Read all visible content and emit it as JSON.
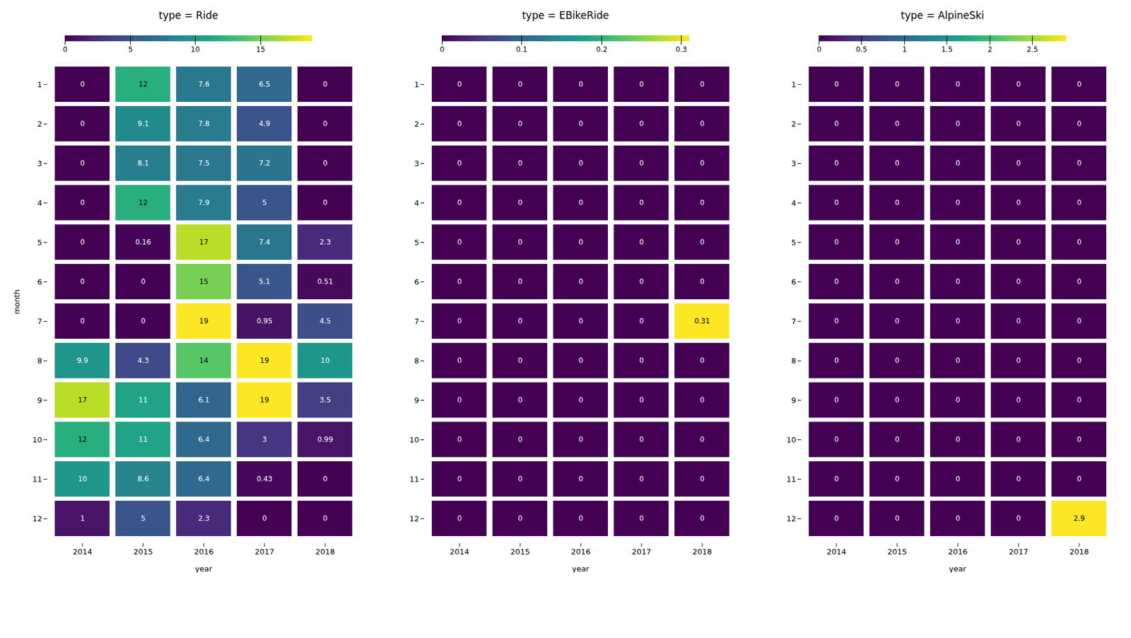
{
  "chart_data": [
    {
      "type": "heatmap",
      "title": "type = Ride",
      "xlabel": "year",
      "ylabel": "month",
      "x": [
        2014,
        2015,
        2016,
        2017,
        2018
      ],
      "y": [
        1,
        2,
        3,
        4,
        5,
        6,
        7,
        8,
        9,
        10,
        11,
        12
      ],
      "values": [
        [
          0,
          12,
          7.6,
          6.5,
          0
        ],
        [
          0,
          9.1,
          7.8,
          4.9,
          0
        ],
        [
          0,
          8.1,
          7.5,
          7.2,
          0
        ],
        [
          0,
          12,
          7.9,
          5,
          0
        ],
        [
          0,
          0.16,
          17,
          7.4,
          2.3
        ],
        [
          0,
          0,
          15,
          5.1,
          0.51
        ],
        [
          0,
          0,
          19,
          0.95,
          4.5
        ],
        [
          9.9,
          4.3,
          14,
          19,
          10
        ],
        [
          17,
          11,
          6.1,
          19,
          3.5
        ],
        [
          12,
          11,
          6.4,
          3,
          0.99
        ],
        [
          10,
          8.6,
          6.4,
          0.43,
          0
        ],
        [
          1,
          5,
          2.3,
          0,
          0
        ]
      ],
      "color": "viridis",
      "color_range": [
        0,
        19
      ],
      "color_ticks": [
        0,
        5,
        10,
        15
      ],
      "data_labels": true
    },
    {
      "type": "heatmap",
      "title": "type = EBikeRide",
      "xlabel": "year",
      "x": [
        2014,
        2015,
        2016,
        2017,
        2018
      ],
      "y": [
        1,
        2,
        3,
        4,
        5,
        6,
        7,
        8,
        9,
        10,
        11,
        12
      ],
      "values": [
        [
          0,
          0,
          0,
          0,
          0
        ],
        [
          0,
          0,
          0,
          0,
          0
        ],
        [
          0,
          0,
          0,
          0,
          0
        ],
        [
          0,
          0,
          0,
          0,
          0
        ],
        [
          0,
          0,
          0,
          0,
          0
        ],
        [
          0,
          0,
          0,
          0,
          0
        ],
        [
          0,
          0,
          0,
          0,
          0.31
        ],
        [
          0,
          0,
          0,
          0,
          0
        ],
        [
          0,
          0,
          0,
          0,
          0
        ],
        [
          0,
          0,
          0,
          0,
          0
        ],
        [
          0,
          0,
          0,
          0,
          0
        ],
        [
          0,
          0,
          0,
          0,
          0
        ]
      ],
      "color": "viridis",
      "color_range": [
        0,
        0.31
      ],
      "color_ticks": [
        0,
        0.1,
        0.2,
        0.3
      ],
      "data_labels": true
    },
    {
      "type": "heatmap",
      "title": "type = AlpineSki",
      "xlabel": "year",
      "x": [
        2014,
        2015,
        2016,
        2017,
        2018
      ],
      "y": [
        1,
        2,
        3,
        4,
        5,
        6,
        7,
        8,
        9,
        10,
        11,
        12
      ],
      "values": [
        [
          0,
          0,
          0,
          0,
          0
        ],
        [
          0,
          0,
          0,
          0,
          0
        ],
        [
          0,
          0,
          0,
          0,
          0
        ],
        [
          0,
          0,
          0,
          0,
          0
        ],
        [
          0,
          0,
          0,
          0,
          0
        ],
        [
          0,
          0,
          0,
          0,
          0
        ],
        [
          0,
          0,
          0,
          0,
          0
        ],
        [
          0,
          0,
          0,
          0,
          0
        ],
        [
          0,
          0,
          0,
          0,
          0
        ],
        [
          0,
          0,
          0,
          0,
          0
        ],
        [
          0,
          0,
          0,
          0,
          0
        ],
        [
          0,
          0,
          0,
          0,
          2.9
        ]
      ],
      "color": "viridis",
      "color_range": [
        0,
        2.9
      ],
      "color_ticks": [
        0,
        0.5,
        1,
        1.5,
        2,
        2.5
      ],
      "data_labels": true
    }
  ]
}
